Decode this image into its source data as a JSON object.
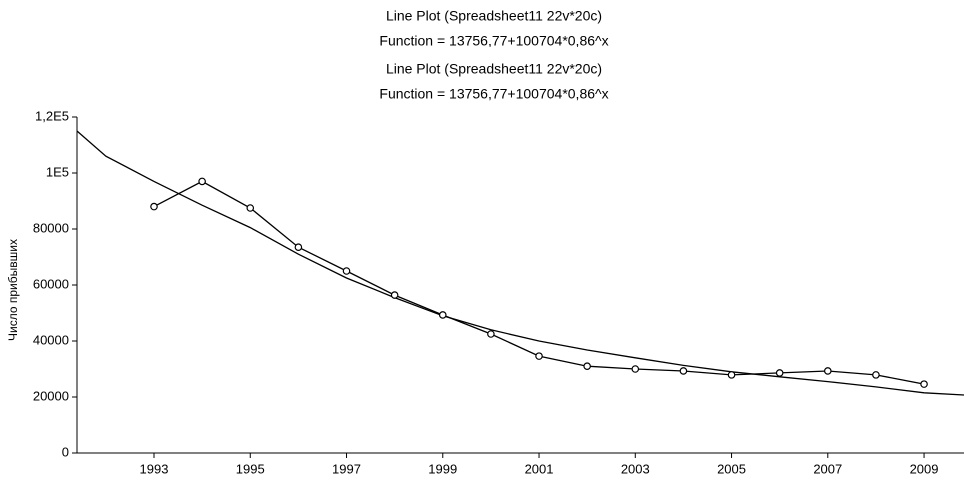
{
  "chart_data": {
    "type": "line",
    "title": "Line Plot (Spreadsheet11 22v*20c)",
    "subtitle": "Function = 13756,77+100704*0,86^x",
    "ylabel": "Число прибывших",
    "x": [
      1993,
      1994,
      1995,
      1996,
      1997,
      1998,
      1999,
      2000,
      2001,
      2002,
      2003,
      2004,
      2005,
      2006,
      2007,
      2008,
      2009
    ],
    "series": [
      {
        "values": [
          88000,
          97000,
          87500,
          73500,
          65000,
          56400,
          49300,
          42500,
          34600,
          31000,
          30000,
          29300,
          27900,
          28600,
          29300,
          27900,
          24600
        ],
        "color": "#000000"
      }
    ],
    "fit": {
      "x": [
        1991.4,
        1992,
        1993,
        1994,
        1995,
        1996,
        1997,
        1998,
        1999,
        2000,
        2001,
        2002,
        2003,
        2004,
        2005,
        2006,
        2007,
        2008,
        2009,
        2009.83
      ],
      "values": [
        115000,
        106000,
        97000,
        88500,
        80500,
        71000,
        62500,
        55500,
        49000,
        44000,
        40000,
        36800,
        34000,
        31300,
        29000,
        27200,
        25500,
        23600,
        21500,
        20700
      ],
      "color": "#000000"
    },
    "xlim": [
      1991.4,
      2009.83
    ],
    "xticks": [
      1993,
      1995,
      1997,
      1999,
      2001,
      2003,
      2005,
      2007,
      2009
    ],
    "ylim": [
      0,
      120000
    ],
    "yticks": [
      0,
      20000,
      40000,
      60000,
      80000,
      {
        "value": 100000,
        "label": "1E5"
      },
      {
        "value": 120000,
        "label": "1,2E5"
      }
    ],
    "grid": false
  }
}
